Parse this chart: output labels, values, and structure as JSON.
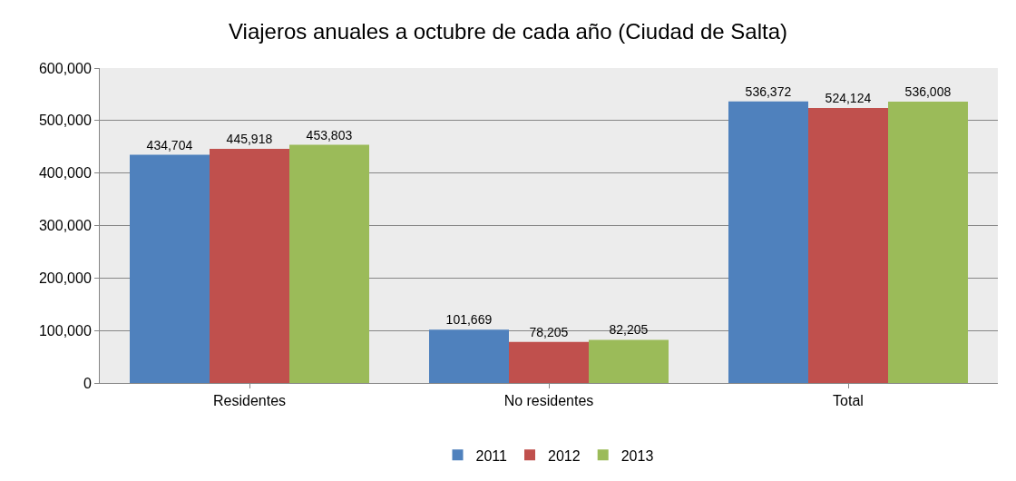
{
  "chart_data": {
    "type": "bar",
    "title": "Viajeros anuales a octubre de cada año (Ciudad de Salta)",
    "categories": [
      "Residentes",
      "No residentes",
      "Total"
    ],
    "series": [
      {
        "name": "2011",
        "color": "#4f81bd",
        "values": [
          434704,
          101669,
          536372
        ],
        "value_labels": [
          "434,704",
          "101,669",
          "536,372"
        ]
      },
      {
        "name": "2012",
        "color": "#c0504d",
        "values": [
          445918,
          78205,
          524124
        ],
        "value_labels": [
          "445,918",
          "78,205",
          "524,124"
        ]
      },
      {
        "name": "2013",
        "color": "#9bbb59",
        "values": [
          453803,
          82205,
          536008
        ],
        "value_labels": [
          "453,803",
          "82,205",
          "536,008"
        ]
      }
    ],
    "ylim": [
      0,
      600000
    ],
    "yticks": [
      0,
      {
        "value": 100000,
        "label": "100,000"
      },
      {
        "value": 200000,
        "label": "200,000"
      },
      {
        "value": 300000,
        "label": "300,000"
      },
      {
        "value": 400000,
        "label": "400,000"
      },
      {
        "value": 500000,
        "label": "500,000"
      },
      {
        "value": 600000,
        "label": "600,000"
      }
    ],
    "grid": "y",
    "legend": "bottom"
  }
}
